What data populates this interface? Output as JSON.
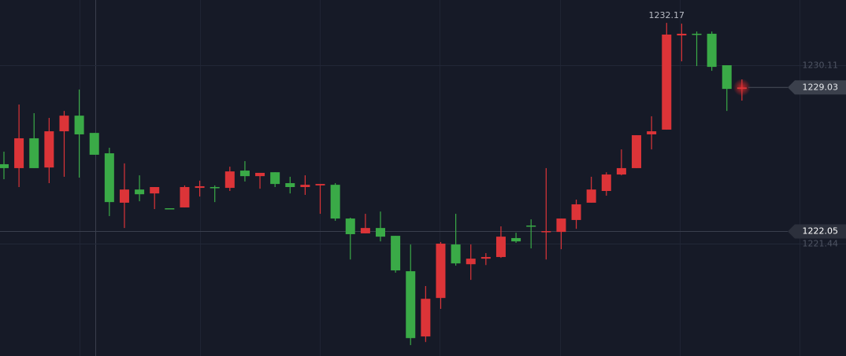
{
  "chart_data": {
    "type": "candlestick",
    "open": [
      1225.3,
      1225.11,
      1226.56,
      1225.14,
      1226.9,
      1227.66,
      1226.82,
      1225.83,
      1223.43,
      1224.07,
      1223.88,
      1223.16,
      1223.2,
      1224.15,
      1224.19,
      1224.15,
      1224.99,
      1224.72,
      1224.91,
      1224.38,
      1224.19,
      1224.27,
      1224.3,
      1222.66,
      1221.94,
      1222.2,
      1221.82,
      1220.1,
      1216.93,
      1218.8,
      1221.4,
      1220.44,
      1220.71,
      1220.79,
      1221.71,
      1222.32,
      1222.01,
      1222.01,
      1222.59,
      1223.43,
      1224.0,
      1224.8,
      1225.11,
      1226.75,
      1226.98,
      1231.56,
      1231.64,
      1231.64,
      1230.11,
      1228.96
    ],
    "high": [
      1225.91,
      1228.2,
      1227.78,
      1227.55,
      1227.89,
      1228.93,
      1226.82,
      1226.1,
      1225.34,
      1224.76,
      1224.19,
      1223.16,
      1224.27,
      1224.5,
      1224.27,
      1225.18,
      1225.45,
      1224.88,
      1224.91,
      1224.69,
      1224.76,
      1224.34,
      1224.38,
      1222.7,
      1222.89,
      1223.0,
      1221.82,
      1221.4,
      1219.38,
      1221.52,
      1222.89,
      1221.4,
      1220.98,
      1222.28,
      1221.97,
      1222.62,
      1225.11,
      1222.66,
      1223.58,
      1224.69,
      1224.91,
      1226.02,
      1226.71,
      1227.63,
      1232.17,
      1232.13,
      1231.75,
      1231.75,
      1230.11,
      1229.42
    ],
    "low": [
      1224.57,
      1224.19,
      1225.11,
      1224.38,
      1224.69,
      1224.65,
      1225.76,
      1222.78,
      1222.2,
      1223.5,
      1223.12,
      1223.12,
      1223.2,
      1223.73,
      1223.46,
      1224.0,
      1224.46,
      1224.11,
      1224.19,
      1223.88,
      1223.81,
      1222.89,
      1222.55,
      1220.67,
      1221.94,
      1221.55,
      1220.03,
      1216.51,
      1216.66,
      1218.27,
      1220.37,
      1219.68,
      1220.4,
      1220.75,
      1221.48,
      1221.21,
      1220.67,
      1221.17,
      1222.16,
      1223.43,
      1223.77,
      1224.76,
      1225.11,
      1226.02,
      1226.98,
      1230.3,
      1230.07,
      1229.84,
      1227.89,
      1228.39
    ],
    "close": [
      1225.11,
      1226.56,
      1225.11,
      1226.9,
      1227.66,
      1226.75,
      1225.76,
      1223.46,
      1224.07,
      1223.84,
      1224.19,
      1223.12,
      1224.19,
      1224.23,
      1224.15,
      1224.95,
      1224.72,
      1224.88,
      1224.34,
      1224.19,
      1224.3,
      1224.34,
      1222.66,
      1221.9,
      1222.2,
      1221.78,
      1220.14,
      1216.85,
      1218.76,
      1221.44,
      1220.48,
      1220.71,
      1220.79,
      1221.78,
      1221.55,
      1222.28,
      1222.05,
      1222.66,
      1223.35,
      1224.07,
      1224.8,
      1225.11,
      1226.71,
      1226.9,
      1231.6,
      1231.64,
      1231.6,
      1230.03,
      1228.96,
      1229.03
    ],
    "up_color": "#dc3438",
    "down_color": "#3aaa47",
    "ylim": [
      1215.98,
      1233.28
    ],
    "yticks": [
      1230.11,
      1221.44
    ],
    "grid": true,
    "crosshair": {
      "price": 1222.05
    }
  }
}
